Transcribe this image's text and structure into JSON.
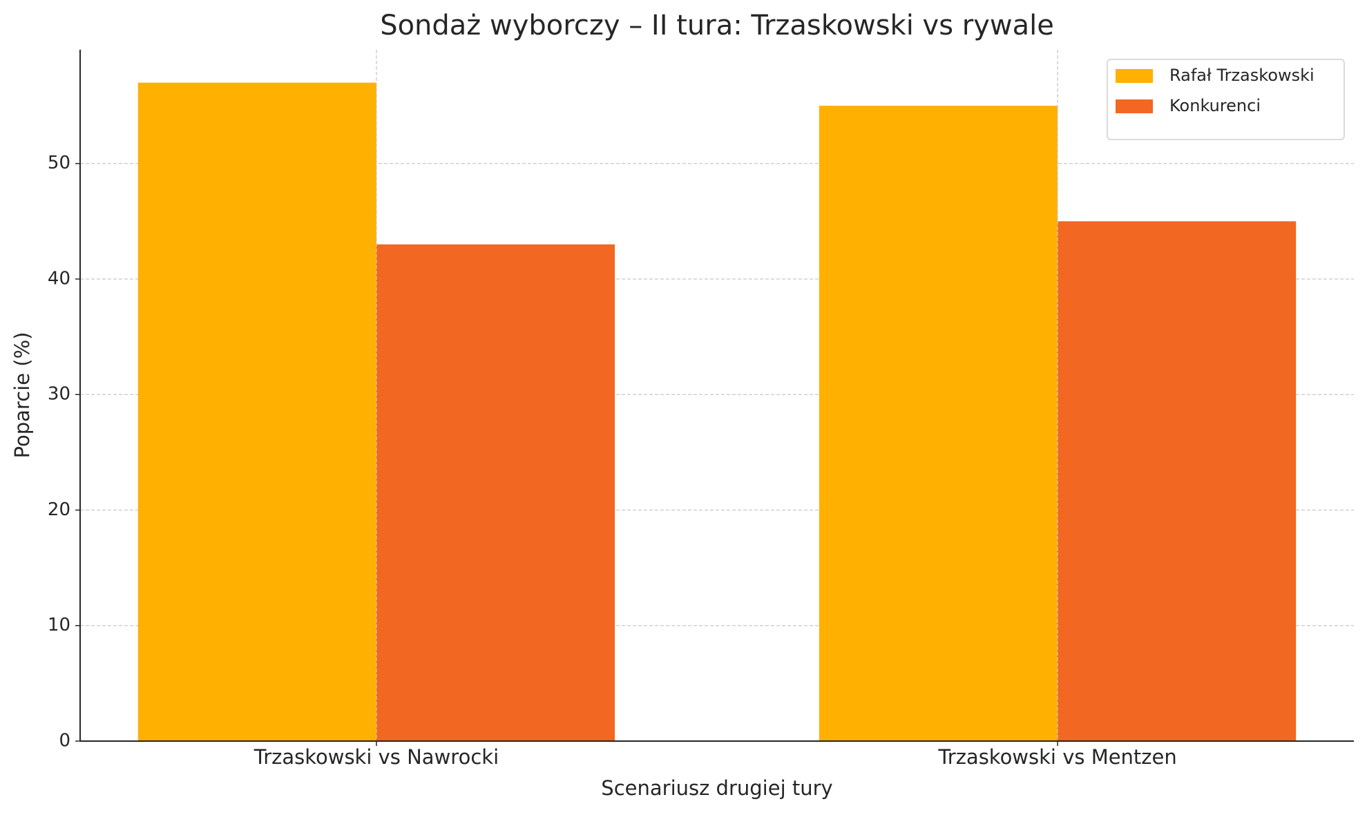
{
  "chart_data": {
    "type": "bar",
    "title": "Sondaż wyborczy – II tura: Trzaskowski vs rywale",
    "x_label": "Scenariusz drugiej tury",
    "y_label": "Poparcie (%)",
    "categories": [
      "Trzaskowski vs Nawrocki",
      "Trzaskowski vs Mentzen"
    ],
    "series": [
      {
        "name": "Rafał Trzaskowski",
        "color": "#ffb000",
        "values": [
          57,
          55
        ]
      },
      {
        "name": "Konkurenci",
        "color": "#f26722",
        "values": [
          43,
          45
        ]
      }
    ],
    "ylim": [
      0,
      59.85
    ],
    "yticks": [
      0,
      10,
      20,
      30,
      40,
      50
    ],
    "grid": true,
    "legend": "upper right"
  }
}
